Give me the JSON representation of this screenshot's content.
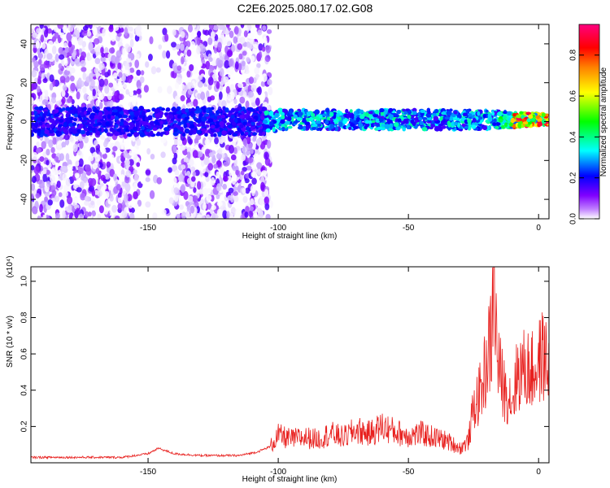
{
  "title": "C2E6.2025.080.17.02.G08",
  "chart_data": [
    {
      "type": "heatmap",
      "xlabel": "Height of straight line (km)",
      "ylabel": "Frequency (Hz)",
      "xlim": [
        -195,
        4
      ],
      "ylim": [
        -50,
        50
      ],
      "xticks": [
        -150,
        -100,
        -50,
        0
      ],
      "yticks": [
        -40,
        -20,
        0,
        20,
        40
      ],
      "xtick_labels": [
        "-150",
        "-100",
        "-50",
        "0"
      ],
      "ytick_labels": [
        "-40",
        "-20",
        "0",
        "20",
        "40"
      ],
      "colorbar": {
        "label": "Normalized spectral amplitude",
        "range": [
          0,
          0.95
        ],
        "ticks": [
          0.0,
          0.2,
          0.4,
          0.6,
          0.8
        ],
        "tick_labels": [
          "0.0",
          "0.2",
          "0.4",
          "0.6",
          "0.8"
        ],
        "colors": [
          "#ffffff",
          "#8000ff",
          "#0000ff",
          "#00ffff",
          "#00ff00",
          "#ffff00",
          "#ff8000",
          "#ff0000",
          "#ff0080"
        ]
      }
    },
    {
      "type": "line",
      "xlabel": "Height of straight line (km)",
      "ylabel": "SNR (10 * v/v)",
      "scale_label": "(x10⁴)",
      "xlim": [
        -195,
        4
      ],
      "ylim": [
        0,
        1.08
      ],
      "xticks": [
        -150,
        -100,
        -50,
        0
      ],
      "yticks": [
        0.2,
        0.4,
        0.6,
        0.8,
        1.0
      ],
      "xtick_labels": [
        "-150",
        "-100",
        "-50",
        "0"
      ],
      "ytick_labels": [
        "0.2",
        "0.4",
        "0.6",
        "0.8",
        "1.0"
      ],
      "series": [
        {
          "color": "#e8201e",
          "x": [
            -195,
            -180,
            -160,
            -150,
            -146,
            -140,
            -130,
            -115,
            -108,
            -103,
            -100,
            -95,
            -90,
            -85,
            -80,
            -75,
            -70,
            -65,
            -60,
            -55,
            -50,
            -45,
            -40,
            -35,
            -30,
            -27,
            -25,
            -22,
            -20,
            -18,
            -17,
            -16,
            -15,
            -13,
            -10,
            -8,
            -5,
            -2,
            0,
            2,
            4
          ],
          "y": [
            0.03,
            0.03,
            0.03,
            0.05,
            0.08,
            0.05,
            0.04,
            0.04,
            0.06,
            0.09,
            0.15,
            0.13,
            0.14,
            0.13,
            0.16,
            0.14,
            0.18,
            0.16,
            0.2,
            0.17,
            0.15,
            0.16,
            0.14,
            0.12,
            0.08,
            0.12,
            0.3,
            0.4,
            0.55,
            0.7,
            1.05,
            0.6,
            0.5,
            0.4,
            0.35,
            0.5,
            0.52,
            0.5,
            0.55,
            0.6,
            0.5
          ]
        }
      ]
    }
  ]
}
